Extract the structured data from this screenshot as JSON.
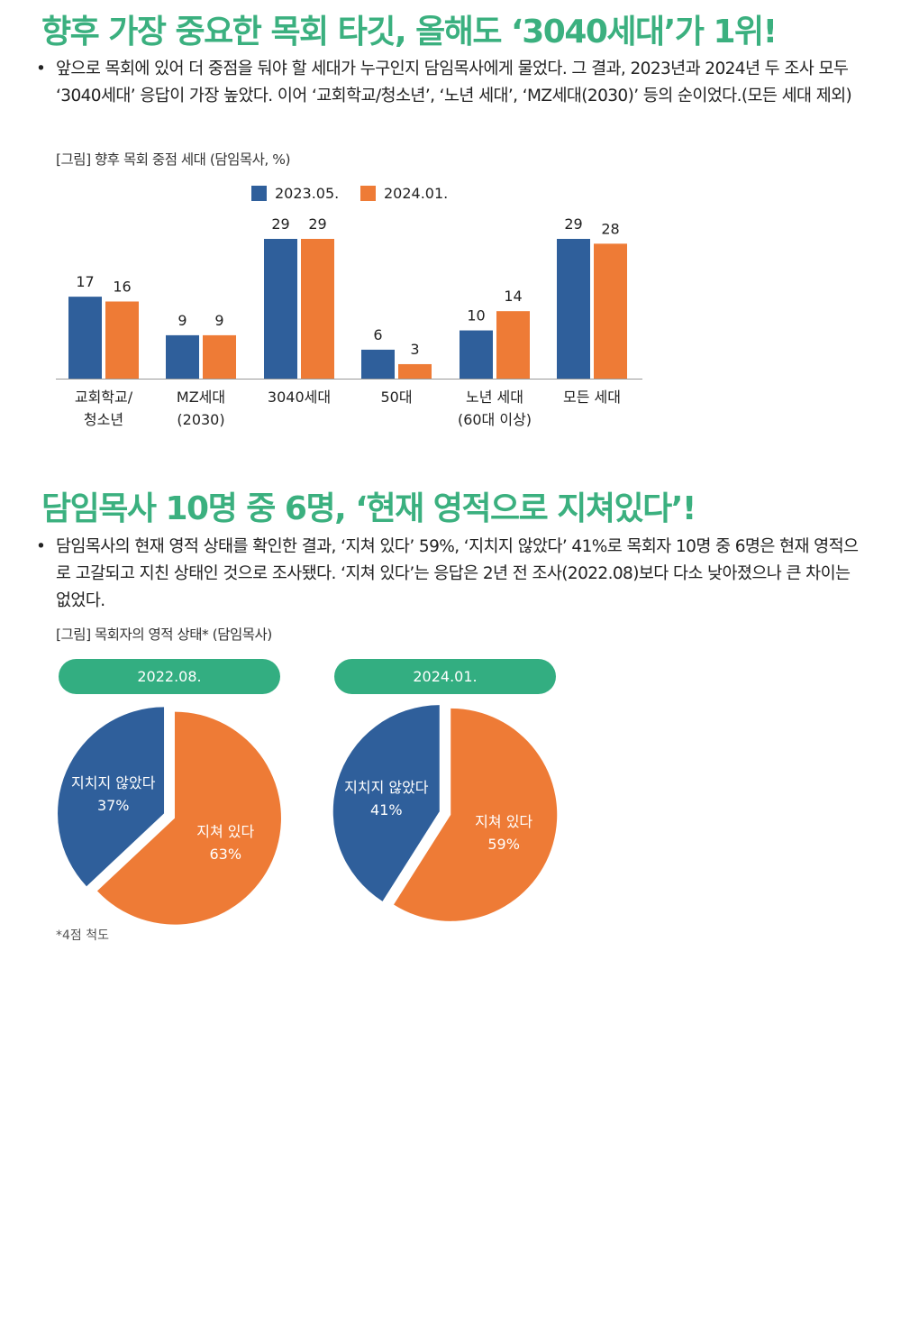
{
  "section1": {
    "title": "향후 가장 중요한 목회 타깃, 올해도 ‘3040세대’가 1위!",
    "bullet": "•",
    "paragraph": "앞으로 목회에 있어 더 중점을 둬야 할 세대가 누구인지 담임목사에게 물었다. 그 결과, 2023년과 2024년 두 조사 모두 ‘3040세대’ 응답이 가장 높았다. 이어 ‘교회학교/청소년’, ‘노년 세대’, ‘MZ세대(2030)’ 등의 순이었다.(모든 세대 제외)",
    "figure_caption": "[그림] 향후 목회 중점 세대 (담임목사, %)"
  },
  "section2": {
    "title": "담임목사 10명 중 6명, ‘현재 영적으로 지쳐있다’!",
    "bullet": "•",
    "paragraph": "담임목사의 현재 영적 상태를 확인한 결과, ‘지쳐 있다’ 59%, ‘지치지 않았다’ 41%로 목회자 10명 중 6명은 현재 영적으로 고갈되고 지친 상태인 것으로 조사됐다. ‘지쳐 있다’는 응답은 2년 전 조사(2022.08)보다 다소 낮아졌으나 큰 차이는 없었다.",
    "figure_caption": "[그림] 목회자의 영적 상태* (담임목사)",
    "footnote": "*4점 척도"
  },
  "colors": {
    "heading": "#3bb07f",
    "blue": "#2f5f9b",
    "orange": "#ee7b36",
    "pill": "#33ae81",
    "axis": "#999999"
  },
  "chart_data": [
    {
      "type": "bar",
      "categories": [
        [
          "교회학교/",
          "청소년"
        ],
        [
          "MZ세대",
          "(2030)"
        ],
        [
          "3040세대"
        ],
        [
          "50대"
        ],
        [
          "노년 세대",
          "(60대 이상)"
        ],
        [
          "모든 세대"
        ]
      ],
      "series": [
        {
          "name": "2023.05.",
          "color": "#2f5f9b",
          "values": [
            17,
            9,
            29,
            6,
            10,
            29
          ]
        },
        {
          "name": "2024.01.",
          "color": "#ee7b36",
          "values": [
            16,
            9,
            29,
            3,
            14,
            28
          ]
        }
      ],
      "ylim": [
        0,
        30
      ],
      "legend": "top",
      "grid": false
    },
    {
      "type": "pie",
      "title": "2022.08.",
      "slices": [
        {
          "label": "지치지 않았다",
          "value": 37,
          "value_label": "37%",
          "color": "#2f5f9b"
        },
        {
          "label": "지쳐 있다",
          "value": 63,
          "value_label": "63%",
          "color": "#ee7b36"
        }
      ]
    },
    {
      "type": "pie",
      "title": "2024.01.",
      "slices": [
        {
          "label": "지치지 않았다",
          "value": 41,
          "value_label": "41%",
          "color": "#2f5f9b"
        },
        {
          "label": "지쳐 있다",
          "value": 59,
          "value_label": "59%",
          "color": "#ee7b36"
        }
      ]
    }
  ]
}
